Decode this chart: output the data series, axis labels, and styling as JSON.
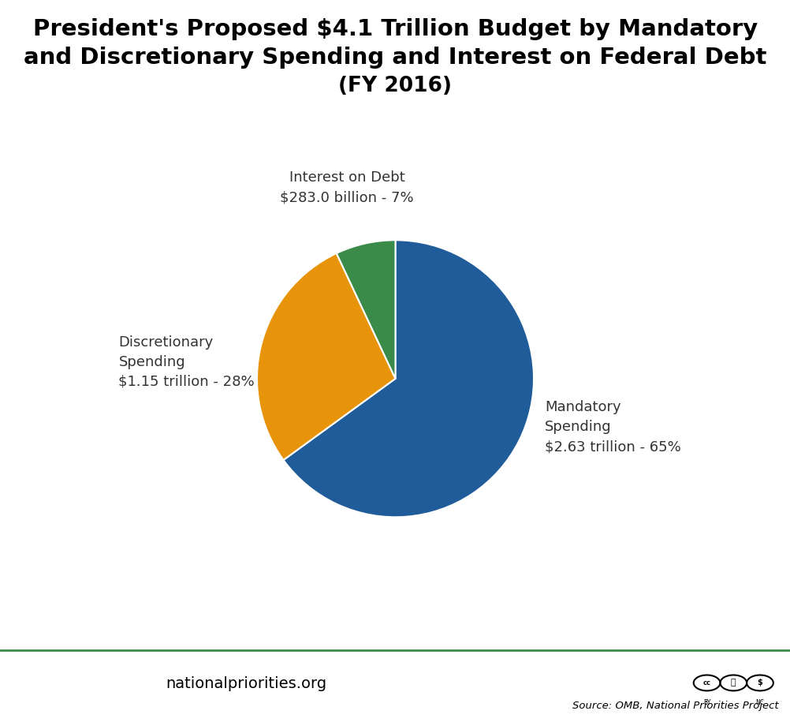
{
  "title_line1": "President's Proposed $4.1 Trillion Budget by Mandatory",
  "title_line2": "and Discretionary Spending and Interest on Federal Debt",
  "title_line3": "(FY 2016)",
  "slices": [
    65,
    28,
    7
  ],
  "colors": [
    "#1F5C99",
    "#E8940A",
    "#3A8A4A"
  ],
  "startangle": 90,
  "background_color": "#FFFFFF",
  "footer_line_color": "#3A8A4A",
  "footer_text": "nationalpriorities.org",
  "source_text": "Source: OMB, National Priorities Project",
  "label_color": "#333333",
  "label_fontsize": 13,
  "mandatory_label": "Mandatory\nSpending\n$2.63 trillion - 65%",
  "discretionary_label": "Discretionary\nSpending\n$1.15 trillion - 28%",
  "interest_label": "Interest on Debt\n$283.0 billion - 7%"
}
